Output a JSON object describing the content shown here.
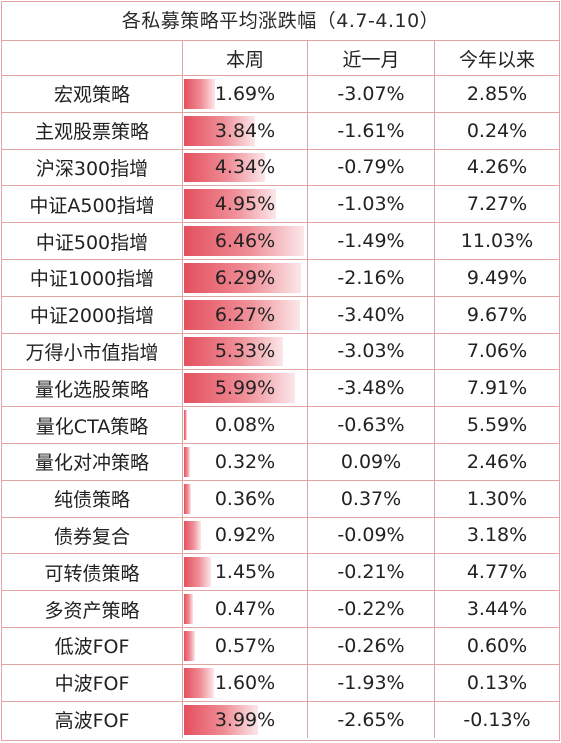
{
  "title": "各私募策略平均涨跌幅（4.7-4.10）",
  "headers": [
    "",
    "本周",
    "近一月",
    "今年以来"
  ],
  "colors": {
    "border": "#e0a4a4",
    "bar_start": "#e4505f",
    "bar_end": "#fbe7e9"
  },
  "bar_max_value": 6.46,
  "rows": [
    {
      "name": "宏观策略",
      "week": "1.69%",
      "week_value": 1.69,
      "month": "-3.07%",
      "ytd": "2.85%"
    },
    {
      "name": "主观股票策略",
      "week": "3.84%",
      "week_value": 3.84,
      "month": "-1.61%",
      "ytd": "0.24%"
    },
    {
      "name": "沪深300指增",
      "week": "4.34%",
      "week_value": 4.34,
      "month": "-0.79%",
      "ytd": "4.26%"
    },
    {
      "name": "中证A500指增",
      "week": "4.95%",
      "week_value": 4.95,
      "month": "-1.03%",
      "ytd": "7.27%"
    },
    {
      "name": "中证500指增",
      "week": "6.46%",
      "week_value": 6.46,
      "month": "-1.49%",
      "ytd": "11.03%"
    },
    {
      "name": "中证1000指增",
      "week": "6.29%",
      "week_value": 6.29,
      "month": "-2.16%",
      "ytd": "9.49%"
    },
    {
      "name": "中证2000指增",
      "week": "6.27%",
      "week_value": 6.27,
      "month": "-3.40%",
      "ytd": "9.67%"
    },
    {
      "name": "万得小市值指增",
      "week": "5.33%",
      "week_value": 5.33,
      "month": "-3.03%",
      "ytd": "7.06%"
    },
    {
      "name": "量化选股策略",
      "week": "5.99%",
      "week_value": 5.99,
      "month": "-3.48%",
      "ytd": "7.91%"
    },
    {
      "name": "量化CTA策略",
      "week": "0.08%",
      "week_value": 0.08,
      "month": "-0.63%",
      "ytd": "5.59%"
    },
    {
      "name": "量化对冲策略",
      "week": "0.32%",
      "week_value": 0.32,
      "month": "0.09%",
      "ytd": "2.46%"
    },
    {
      "name": "纯债策略",
      "week": "0.36%",
      "week_value": 0.36,
      "month": "0.37%",
      "ytd": "1.30%"
    },
    {
      "name": "债券复合",
      "week": "0.92%",
      "week_value": 0.92,
      "month": "-0.09%",
      "ytd": "3.18%"
    },
    {
      "name": "可转债策略",
      "week": "1.45%",
      "week_value": 1.45,
      "month": "-0.21%",
      "ytd": "4.77%"
    },
    {
      "name": "多资产策略",
      "week": "0.47%",
      "week_value": 0.47,
      "month": "-0.22%",
      "ytd": "3.44%"
    },
    {
      "name": "低波FOF",
      "week": "0.57%",
      "week_value": 0.57,
      "month": "-0.26%",
      "ytd": "0.60%"
    },
    {
      "name": "中波FOF",
      "week": "1.60%",
      "week_value": 1.6,
      "month": "-1.93%",
      "ytd": "0.13%"
    },
    {
      "name": "高波FOF",
      "week": "3.99%",
      "week_value": 3.99,
      "month": "-2.65%",
      "ytd": "-0.13%"
    }
  ]
}
